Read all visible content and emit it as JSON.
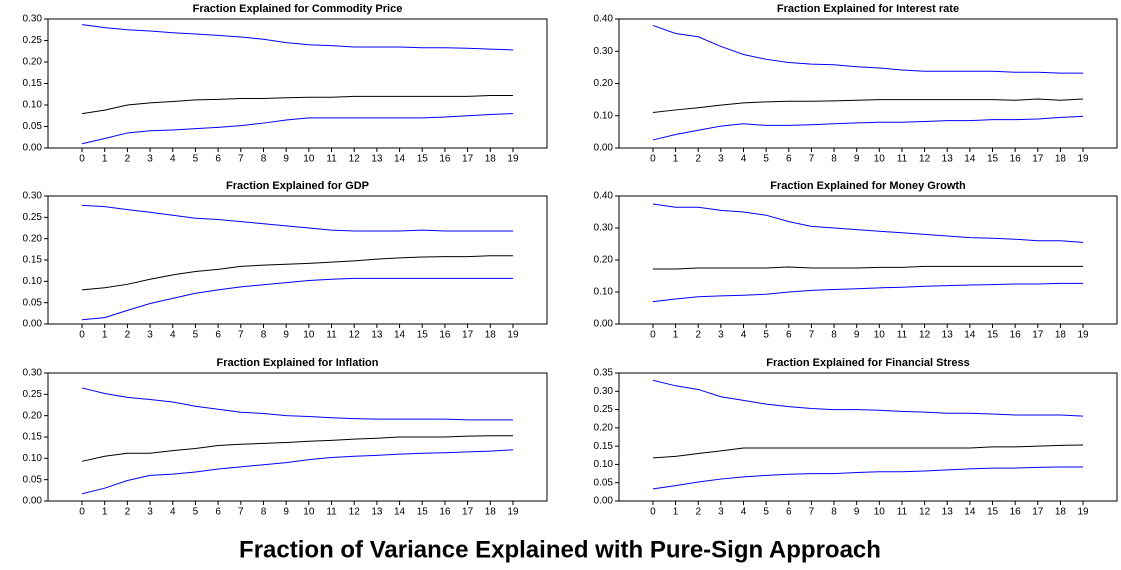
{
  "title": "Fraction of Variance Explained with Pure-Sign Approach",
  "chart_data": [
    {
      "type": "line",
      "title": "Fraction Explained for Commodity Price",
      "x": [
        0,
        1,
        2,
        3,
        4,
        5,
        6,
        7,
        8,
        9,
        10,
        11,
        12,
        13,
        14,
        15,
        16,
        17,
        18,
        19
      ],
      "xlim": [
        -1.5,
        20.5
      ],
      "xticks": [
        0,
        1,
        2,
        3,
        4,
        5,
        6,
        7,
        8,
        9,
        10,
        11,
        12,
        13,
        14,
        15,
        16,
        17,
        18,
        19
      ],
      "ylim": [
        0,
        0.3
      ],
      "yticks": [
        {
          "value": 0,
          "label": "0.00"
        },
        {
          "value": 0.05,
          "label": "0.05"
        },
        {
          "value": 0.1,
          "label": "0.10"
        },
        {
          "value": 0.15,
          "label": "0.15"
        },
        {
          "value": 0.2,
          "label": "0.20"
        },
        {
          "value": 0.25,
          "label": "0.25"
        },
        {
          "value": 0.3,
          "label": "0.30"
        }
      ],
      "series": [
        {
          "color": "#0000ff",
          "values": [
            0.287,
            0.28,
            0.275,
            0.272,
            0.268,
            0.265,
            0.262,
            0.258,
            0.253,
            0.245,
            0.24,
            0.238,
            0.235,
            0.235,
            0.235,
            0.233,
            0.233,
            0.232,
            0.23,
            0.228
          ]
        },
        {
          "color": "#000000",
          "values": [
            0.08,
            0.088,
            0.1,
            0.105,
            0.108,
            0.112,
            0.113,
            0.115,
            0.115,
            0.117,
            0.118,
            0.118,
            0.12,
            0.12,
            0.12,
            0.12,
            0.12,
            0.12,
            0.122,
            0.122
          ]
        },
        {
          "color": "#0000ff",
          "values": [
            0.01,
            0.022,
            0.035,
            0.04,
            0.042,
            0.045,
            0.048,
            0.052,
            0.058,
            0.065,
            0.07,
            0.07,
            0.07,
            0.07,
            0.07,
            0.07,
            0.072,
            0.075,
            0.078,
            0.08
          ]
        }
      ]
    },
    {
      "type": "line",
      "title": "Fraction Explained for Interest rate",
      "x": [
        0,
        1,
        2,
        3,
        4,
        5,
        6,
        7,
        8,
        9,
        10,
        11,
        12,
        13,
        14,
        15,
        16,
        17,
        18,
        19
      ],
      "xlim": [
        -1.5,
        20.5
      ],
      "xticks": [
        0,
        1,
        2,
        3,
        4,
        5,
        6,
        7,
        8,
        9,
        10,
        11,
        12,
        13,
        14,
        15,
        16,
        17,
        18,
        19
      ],
      "ylim": [
        0,
        0.4
      ],
      "yticks": [
        {
          "value": 0,
          "label": "0.00"
        },
        {
          "value": 0.1,
          "label": "0.10"
        },
        {
          "value": 0.2,
          "label": "0.20"
        },
        {
          "value": 0.3,
          "label": "0.30"
        },
        {
          "value": 0.4,
          "label": "0.40"
        }
      ],
      "series": [
        {
          "color": "#0000ff",
          "values": [
            0.38,
            0.355,
            0.345,
            0.315,
            0.29,
            0.275,
            0.265,
            0.26,
            0.258,
            0.252,
            0.248,
            0.242,
            0.238,
            0.238,
            0.238,
            0.238,
            0.235,
            0.235,
            0.232,
            0.232
          ]
        },
        {
          "color": "#000000",
          "values": [
            0.11,
            0.118,
            0.125,
            0.133,
            0.14,
            0.143,
            0.145,
            0.145,
            0.146,
            0.148,
            0.15,
            0.15,
            0.15,
            0.15,
            0.15,
            0.15,
            0.148,
            0.152,
            0.148,
            0.152
          ]
        },
        {
          "color": "#0000ff",
          "values": [
            0.025,
            0.042,
            0.055,
            0.068,
            0.075,
            0.07,
            0.07,
            0.072,
            0.075,
            0.078,
            0.08,
            0.08,
            0.082,
            0.085,
            0.085,
            0.088,
            0.088,
            0.09,
            0.095,
            0.098
          ]
        }
      ]
    },
    {
      "type": "line",
      "title": "Fraction Explained for GDP",
      "x": [
        0,
        1,
        2,
        3,
        4,
        5,
        6,
        7,
        8,
        9,
        10,
        11,
        12,
        13,
        14,
        15,
        16,
        17,
        18,
        19
      ],
      "xlim": [
        -1.5,
        20.5
      ],
      "xticks": [
        0,
        1,
        2,
        3,
        4,
        5,
        6,
        7,
        8,
        9,
        10,
        11,
        12,
        13,
        14,
        15,
        16,
        17,
        18,
        19
      ],
      "ylim": [
        0,
        0.3
      ],
      "yticks": [
        {
          "value": 0,
          "label": "0.00"
        },
        {
          "value": 0.05,
          "label": "0.05"
        },
        {
          "value": 0.1,
          "label": "0.10"
        },
        {
          "value": 0.15,
          "label": "0.15"
        },
        {
          "value": 0.2,
          "label": "0.20"
        },
        {
          "value": 0.25,
          "label": "0.25"
        },
        {
          "value": 0.3,
          "label": "0.30"
        }
      ],
      "series": [
        {
          "color": "#0000ff",
          "values": [
            0.278,
            0.275,
            0.268,
            0.262,
            0.255,
            0.248,
            0.245,
            0.24,
            0.235,
            0.23,
            0.225,
            0.22,
            0.218,
            0.218,
            0.218,
            0.22,
            0.218,
            0.218,
            0.218,
            0.218
          ]
        },
        {
          "color": "#000000",
          "values": [
            0.08,
            0.085,
            0.093,
            0.105,
            0.115,
            0.123,
            0.128,
            0.135,
            0.138,
            0.14,
            0.142,
            0.145,
            0.148,
            0.152,
            0.155,
            0.157,
            0.158,
            0.158,
            0.16,
            0.16
          ]
        },
        {
          "color": "#0000ff",
          "values": [
            0.01,
            0.015,
            0.032,
            0.048,
            0.06,
            0.072,
            0.08,
            0.087,
            0.092,
            0.097,
            0.102,
            0.105,
            0.107,
            0.107,
            0.107,
            0.107,
            0.107,
            0.107,
            0.107,
            0.107
          ]
        }
      ]
    },
    {
      "type": "line",
      "title": "Fraction Explained for Money Growth",
      "x": [
        0,
        1,
        2,
        3,
        4,
        5,
        6,
        7,
        8,
        9,
        10,
        11,
        12,
        13,
        14,
        15,
        16,
        17,
        18,
        19
      ],
      "xlim": [
        -1.5,
        20.5
      ],
      "xticks": [
        0,
        1,
        2,
        3,
        4,
        5,
        6,
        7,
        8,
        9,
        10,
        11,
        12,
        13,
        14,
        15,
        16,
        17,
        18,
        19
      ],
      "ylim": [
        0,
        0.4
      ],
      "yticks": [
        {
          "value": 0,
          "label": "0.00"
        },
        {
          "value": 0.1,
          "label": "0.10"
        },
        {
          "value": 0.2,
          "label": "0.20"
        },
        {
          "value": 0.3,
          "label": "0.30"
        },
        {
          "value": 0.4,
          "label": "0.40"
        }
      ],
      "series": [
        {
          "color": "#0000ff",
          "values": [
            0.375,
            0.365,
            0.365,
            0.355,
            0.35,
            0.34,
            0.32,
            0.305,
            0.3,
            0.295,
            0.29,
            0.285,
            0.28,
            0.275,
            0.27,
            0.268,
            0.265,
            0.26,
            0.26,
            0.255
          ]
        },
        {
          "color": "#000000",
          "values": [
            0.172,
            0.172,
            0.175,
            0.175,
            0.175,
            0.175,
            0.178,
            0.175,
            0.175,
            0.175,
            0.177,
            0.177,
            0.18,
            0.18,
            0.18,
            0.18,
            0.18,
            0.18,
            0.18,
            0.18
          ]
        },
        {
          "color": "#0000ff",
          "values": [
            0.07,
            0.078,
            0.085,
            0.088,
            0.09,
            0.093,
            0.1,
            0.105,
            0.108,
            0.11,
            0.113,
            0.115,
            0.118,
            0.12,
            0.122,
            0.123,
            0.125,
            0.125,
            0.127,
            0.127
          ]
        }
      ]
    },
    {
      "type": "line",
      "title": "Fraction Explained for Inflation",
      "x": [
        0,
        1,
        2,
        3,
        4,
        5,
        6,
        7,
        8,
        9,
        10,
        11,
        12,
        13,
        14,
        15,
        16,
        17,
        18,
        19
      ],
      "xlim": [
        -1.5,
        20.5
      ],
      "xticks": [
        0,
        1,
        2,
        3,
        4,
        5,
        6,
        7,
        8,
        9,
        10,
        11,
        12,
        13,
        14,
        15,
        16,
        17,
        18,
        19
      ],
      "ylim": [
        0,
        0.3
      ],
      "yticks": [
        {
          "value": 0,
          "label": "0.00"
        },
        {
          "value": 0.05,
          "label": "0.05"
        },
        {
          "value": 0.1,
          "label": "0.10"
        },
        {
          "value": 0.15,
          "label": "0.15"
        },
        {
          "value": 0.2,
          "label": "0.20"
        },
        {
          "value": 0.25,
          "label": "0.25"
        },
        {
          "value": 0.3,
          "label": "0.30"
        }
      ],
      "series": [
        {
          "color": "#0000ff",
          "values": [
            0.265,
            0.252,
            0.243,
            0.238,
            0.232,
            0.222,
            0.215,
            0.208,
            0.205,
            0.2,
            0.198,
            0.195,
            0.193,
            0.192,
            0.192,
            0.192,
            0.192,
            0.19,
            0.19,
            0.19
          ]
        },
        {
          "color": "#000000",
          "values": [
            0.093,
            0.105,
            0.112,
            0.112,
            0.118,
            0.123,
            0.13,
            0.133,
            0.135,
            0.137,
            0.14,
            0.142,
            0.145,
            0.147,
            0.15,
            0.15,
            0.15,
            0.152,
            0.153,
            0.153
          ]
        },
        {
          "color": "#0000ff",
          "values": [
            0.017,
            0.03,
            0.048,
            0.06,
            0.063,
            0.068,
            0.075,
            0.08,
            0.085,
            0.09,
            0.097,
            0.102,
            0.105,
            0.107,
            0.11,
            0.112,
            0.113,
            0.115,
            0.117,
            0.12
          ]
        }
      ]
    },
    {
      "type": "line",
      "title": "Fraction Explained for Financial Stress",
      "x": [
        0,
        1,
        2,
        3,
        4,
        5,
        6,
        7,
        8,
        9,
        10,
        11,
        12,
        13,
        14,
        15,
        16,
        17,
        18,
        19
      ],
      "xlim": [
        -1.5,
        20.5
      ],
      "xticks": [
        0,
        1,
        2,
        3,
        4,
        5,
        6,
        7,
        8,
        9,
        10,
        11,
        12,
        13,
        14,
        15,
        16,
        17,
        18,
        19
      ],
      "ylim": [
        0,
        0.35
      ],
      "yticks": [
        {
          "value": 0,
          "label": "0.00"
        },
        {
          "value": 0.05,
          "label": "0.05"
        },
        {
          "value": 0.1,
          "label": "0.10"
        },
        {
          "value": 0.15,
          "label": "0.15"
        },
        {
          "value": 0.2,
          "label": "0.20"
        },
        {
          "value": 0.25,
          "label": "0.25"
        },
        {
          "value": 0.3,
          "label": "0.30"
        },
        {
          "value": 0.35,
          "label": "0.35"
        }
      ],
      "series": [
        {
          "color": "#0000ff",
          "values": [
            0.33,
            0.315,
            0.305,
            0.285,
            0.275,
            0.265,
            0.258,
            0.253,
            0.25,
            0.25,
            0.248,
            0.245,
            0.243,
            0.24,
            0.24,
            0.238,
            0.235,
            0.235,
            0.235,
            0.232
          ]
        },
        {
          "color": "#000000",
          "values": [
            0.118,
            0.122,
            0.13,
            0.137,
            0.145,
            0.145,
            0.145,
            0.145,
            0.145,
            0.145,
            0.145,
            0.145,
            0.145,
            0.145,
            0.145,
            0.148,
            0.148,
            0.15,
            0.152,
            0.153
          ]
        },
        {
          "color": "#0000ff",
          "values": [
            0.033,
            0.042,
            0.052,
            0.06,
            0.066,
            0.07,
            0.073,
            0.075,
            0.075,
            0.078,
            0.08,
            0.08,
            0.082,
            0.085,
            0.088,
            0.09,
            0.09,
            0.092,
            0.093,
            0.093
          ]
        }
      ]
    }
  ]
}
